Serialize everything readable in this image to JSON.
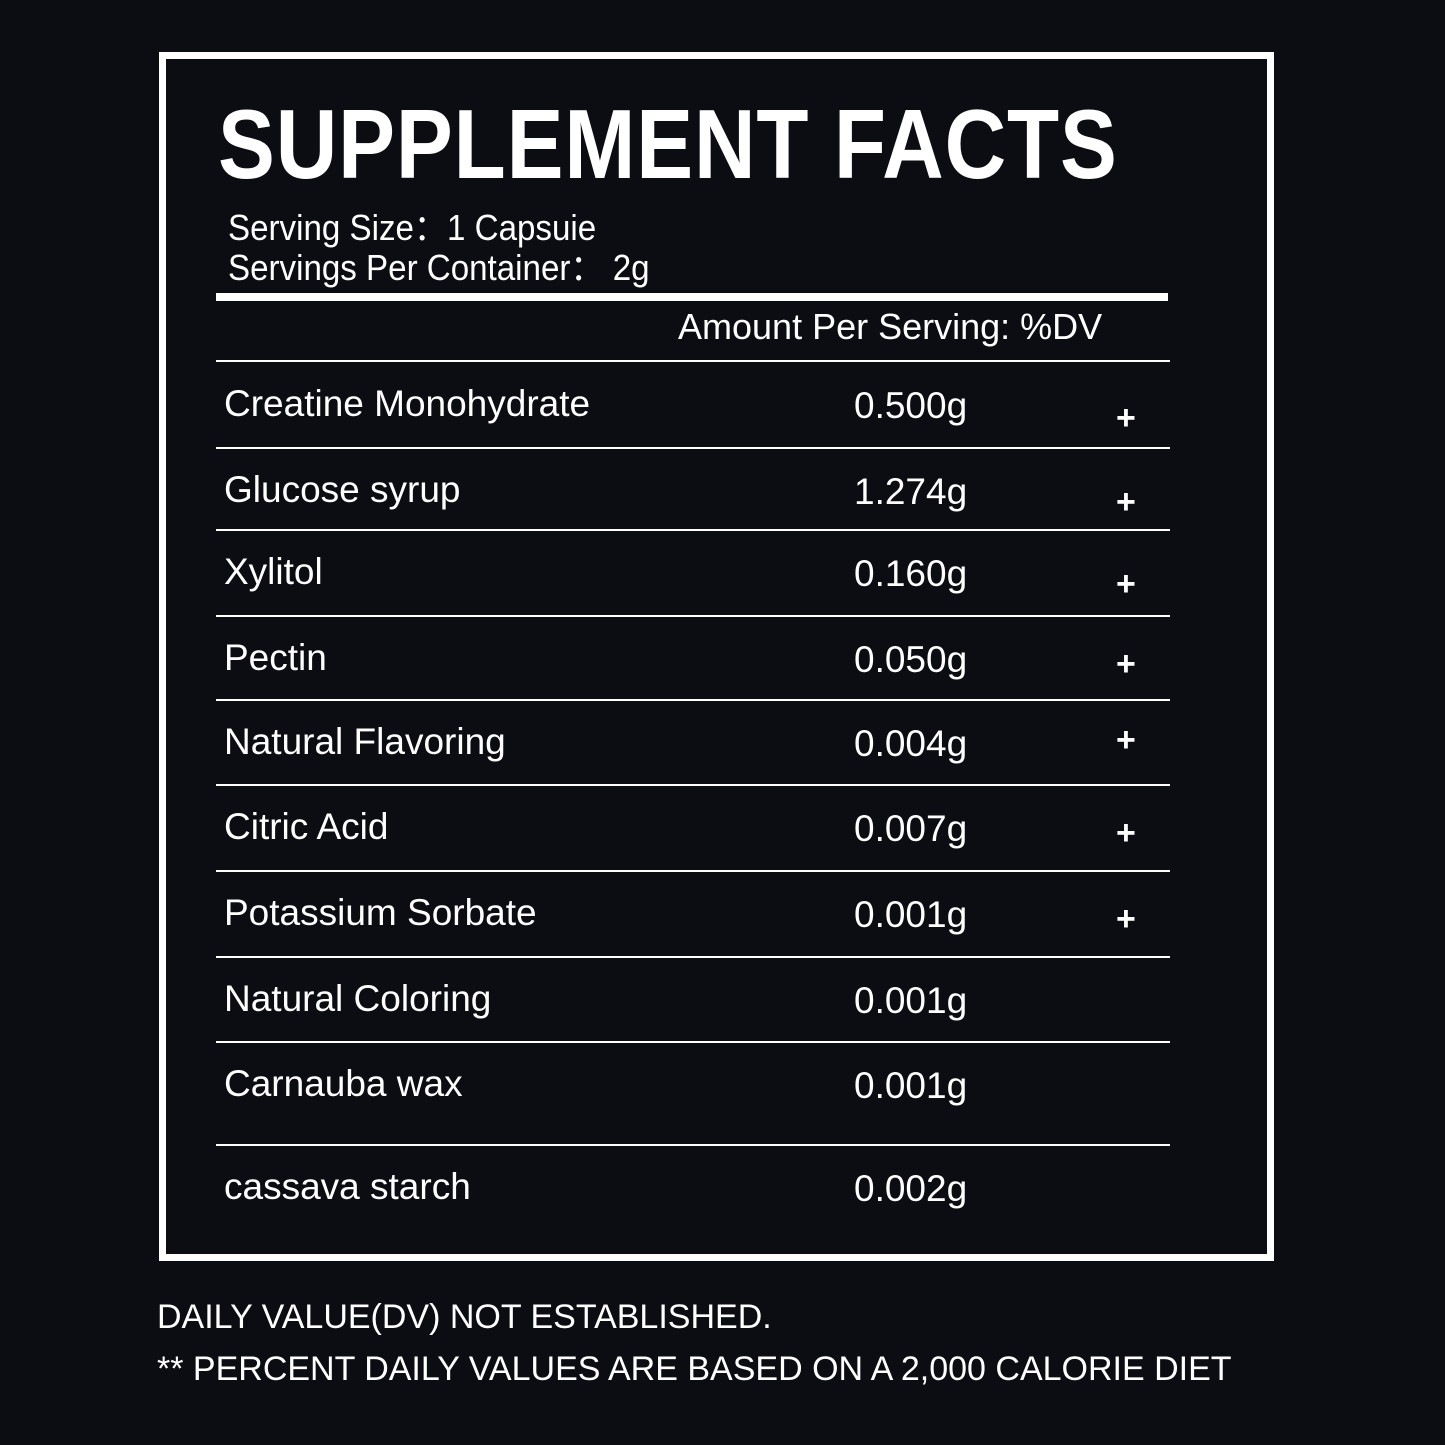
{
  "title": "SUPPLEMENT FACTS",
  "serving_size": "Serving Size：1 Capsuie",
  "servings_per_container": "Servings Per Container：  2g",
  "amount_header": "Amount Per Serving: %DV",
  "rows": [
    {
      "name": "Creatine Monohydrate",
      "amount": "0.500g",
      "dv": "+"
    },
    {
      "name": "Glucose syrup",
      "amount": "1.274g",
      "dv": "+"
    },
    {
      "name": "Xylitol",
      "amount": "0.160g",
      "dv": "+"
    },
    {
      "name": "Pectin",
      "amount": "0.050g",
      "dv": "+"
    },
    {
      "name": "Natural Flavoring",
      "amount": "0.004g",
      "dv": "+"
    },
    {
      "name": "Citric Acid",
      "amount": "0.007g",
      "dv": "+"
    },
    {
      "name": "Potassium Sorbate",
      "amount": "0.001g",
      "dv": "+"
    },
    {
      "name": "Natural Coloring",
      "amount": "0.001g",
      "dv": ""
    },
    {
      "name": "Carnauba wax",
      "amount": "0.001g",
      "dv": ""
    },
    {
      "name": "cassava starch",
      "amount": "0.002g",
      "dv": ""
    }
  ],
  "footnotes": [
    "DAILY VALUE(DV) NOT ESTABLISHED.",
    "** PERCENT DAILY VALUES ARE BASED ON A 2,000 CALORIE DIET"
  ]
}
